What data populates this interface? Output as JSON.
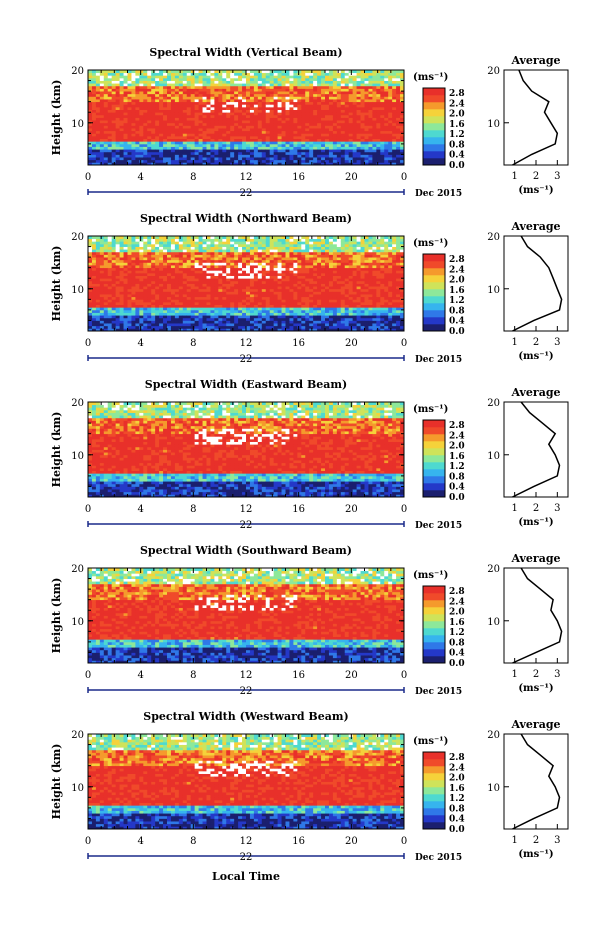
{
  "figure": {
    "date_label": "Dec 2015",
    "x_axis_title": "Local Time"
  },
  "colorbar": {
    "unit": "(ms⁻¹)",
    "tick_labels": [
      "2.8",
      "2.4",
      "2.0",
      "1.6",
      "1.2",
      "0.8",
      "0.4",
      "0.0"
    ],
    "colors": [
      "#1b1f6e",
      "#2438c8",
      "#2f78e8",
      "#36b4ee",
      "#4ed9d0",
      "#8de89a",
      "#cfe35a",
      "#f5d23a",
      "#f59a2c",
      "#f04a2a",
      "#e8302a"
    ],
    "range": [
      0.0,
      3.0
    ]
  },
  "panels": [
    {
      "title": "Spectral Width (Vertical Beam)",
      "day_label": "22",
      "ylabel": "Height (km)",
      "avg_title": "Average",
      "avg_xlabel": "(ms⁻¹)",
      "avg_xticks": [
        "1",
        "2",
        "3"
      ]
    },
    {
      "title": "Spectral Width (Northward Beam)",
      "day_label": "22",
      "ylabel": "Height (km)",
      "avg_title": "Average",
      "avg_xlabel": "(ms⁻¹)",
      "avg_xticks": [
        "1",
        "2",
        "3"
      ]
    },
    {
      "title": "Spectral Width (Eastward Beam)",
      "day_label": "22",
      "ylabel": "Height (km)",
      "avg_title": "Average",
      "avg_xlabel": "(ms⁻¹)",
      "avg_xticks": [
        "1",
        "2",
        "3"
      ]
    },
    {
      "title": "Spectral Width (Southward Beam)",
      "day_label": "22",
      "ylabel": "Height (km)",
      "avg_title": "Average",
      "avg_xlabel": "(ms⁻¹)",
      "avg_xticks": [
        "1",
        "2",
        "3"
      ]
    },
    {
      "title": "Spectral Width (Westward Beam)",
      "day_label": "22",
      "ylabel": "Height (km)",
      "avg_title": "Average",
      "avg_xlabel": "(ms⁻¹)",
      "avg_xticks": [
        "1",
        "2",
        "3"
      ]
    }
  ],
  "chart_data": {
    "type": "heatmap",
    "x_ticks": [
      "0",
      "4",
      "8",
      "12",
      "16",
      "20",
      "0"
    ],
    "y_ticks": [
      "20",
      "10"
    ],
    "xlim": [
      0,
      24
    ],
    "ylim": [
      2,
      20
    ],
    "avg_xlim": [
      0.5,
      3.5
    ],
    "heights": [
      2,
      4,
      6,
      8,
      10,
      12,
      14,
      16,
      18,
      20
    ],
    "layers": [
      {
        "z": [
          2,
          5
        ],
        "v": 0.3
      },
      {
        "z": [
          5,
          6.5
        ],
        "v": 1.1
      },
      {
        "z": [
          6.5,
          14
        ],
        "v": 2.9
      },
      {
        "z": [
          14,
          17
        ],
        "v": 2.5
      },
      {
        "z": [
          17,
          20
        ],
        "v": 1.6
      }
    ],
    "average_profiles": [
      {
        "name": "Vertical Beam",
        "values": [
          0.9,
          1.8,
          2.9,
          3.0,
          2.7,
          2.4,
          2.6,
          1.8,
          1.4,
          1.2
        ]
      },
      {
        "name": "Northward Beam",
        "values": [
          0.9,
          1.9,
          3.1,
          3.2,
          3.0,
          2.8,
          2.6,
          2.2,
          1.6,
          1.3
        ]
      },
      {
        "name": "Eastward Beam",
        "values": [
          0.9,
          1.9,
          3.0,
          3.1,
          2.9,
          2.6,
          2.9,
          2.3,
          1.7,
          1.3
        ]
      },
      {
        "name": "Southward Beam",
        "values": [
          0.9,
          2.0,
          3.1,
          3.2,
          3.0,
          2.7,
          2.8,
          2.2,
          1.6,
          1.3
        ]
      },
      {
        "name": "Westward Beam",
        "values": [
          0.9,
          1.9,
          3.0,
          3.1,
          2.9,
          2.6,
          2.8,
          2.2,
          1.6,
          1.3
        ]
      }
    ]
  }
}
